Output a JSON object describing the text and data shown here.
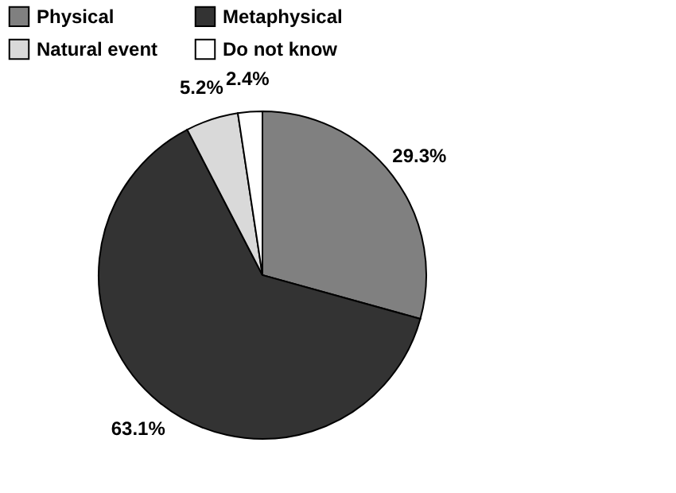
{
  "chart_data": {
    "type": "pie",
    "categories": [
      "Physical",
      "Metaphysical",
      "Natural event",
      "Do not know"
    ],
    "values": [
      29.3,
      63.1,
      5.2,
      2.4
    ],
    "colors": [
      "#808080",
      "#333333",
      "#d9d9d9",
      "#ffffff"
    ],
    "value_labels": [
      "29.3%",
      "63.1%",
      "5.2%",
      "2.4%"
    ],
    "legend": "top"
  }
}
